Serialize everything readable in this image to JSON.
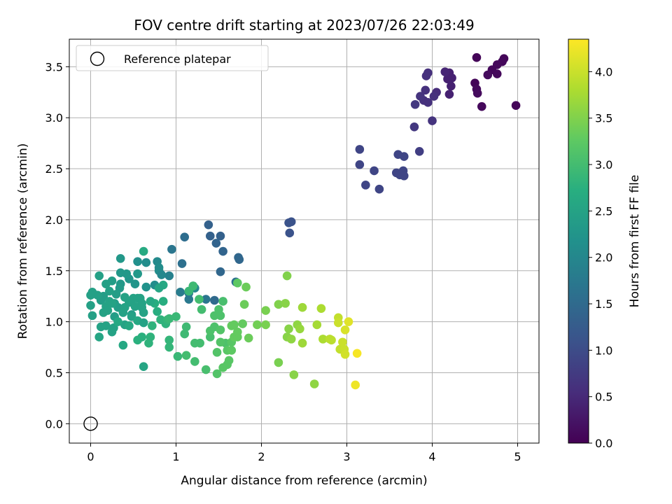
{
  "chart_data": {
    "type": "scatter",
    "title": "FOV centre drift starting at 2023/07/26 22:03:49",
    "xlabel": "Angular distance from reference (arcmin)",
    "ylabel": "Rotation from reference (arcmin)",
    "colorbar_label": "Hours from first FF file",
    "xlim": [
      -0.25,
      5.25
    ],
    "ylim": [
      -0.19,
      3.77
    ],
    "clim": [
      0,
      4.35
    ],
    "x_ticks": [
      "0",
      "1",
      "2",
      "3",
      "4",
      "5"
    ],
    "y_ticks": [
      "0.0",
      "0.5",
      "1.0",
      "1.5",
      "2.0",
      "2.5",
      "3.0",
      "3.5"
    ],
    "colorbar_ticks": [
      "0.0",
      "0.5",
      "1.0",
      "1.5",
      "2.0",
      "2.5",
      "3.0",
      "3.5",
      "4.0"
    ],
    "colormap": "viridis",
    "grid": true,
    "legend": {
      "position": "top-left",
      "entries": [
        "Reference platepar"
      ]
    },
    "reference_point": {
      "x": 0,
      "y": 0,
      "label": "Reference platepar"
    },
    "points": [
      [
        4.52,
        3.59,
        0.05
      ],
      [
        4.84,
        3.58,
        0.05
      ],
      [
        4.82,
        3.55,
        0.08
      ],
      [
        4.76,
        3.52,
        0.1
      ],
      [
        4.7,
        3.47,
        0.08
      ],
      [
        4.76,
        3.43,
        0.1
      ],
      [
        4.65,
        3.42,
        0.12
      ],
      [
        4.5,
        3.34,
        0.05
      ],
      [
        4.52,
        3.28,
        0.1
      ],
      [
        4.53,
        3.24,
        0.12
      ],
      [
        4.58,
        3.11,
        0.1
      ],
      [
        4.98,
        3.12,
        0.05
      ],
      [
        4.2,
        3.44,
        0.4
      ],
      [
        4.23,
        3.39,
        0.4
      ],
      [
        4.18,
        3.38,
        0.4
      ],
      [
        4.15,
        3.45,
        0.45
      ],
      [
        4.22,
        3.31,
        0.4
      ],
      [
        4.2,
        3.23,
        0.4
      ],
      [
        4.05,
        3.25,
        0.55
      ],
      [
        4.02,
        3.21,
        0.6
      ],
      [
        3.95,
        3.44,
        0.6
      ],
      [
        3.93,
        3.41,
        0.6
      ],
      [
        3.92,
        3.27,
        0.6
      ],
      [
        3.9,
        3.17,
        0.6
      ],
      [
        3.95,
        3.15,
        0.6
      ],
      [
        3.86,
        3.21,
        0.65
      ],
      [
        3.8,
        3.13,
        0.7
      ],
      [
        4.0,
        2.97,
        0.65
      ],
      [
        3.79,
        2.91,
        0.7
      ],
      [
        3.85,
        2.67,
        0.8
      ],
      [
        3.15,
        2.69,
        0.9
      ],
      [
        3.15,
        2.54,
        0.9
      ],
      [
        3.22,
        2.34,
        0.9
      ],
      [
        3.32,
        2.48,
        0.9
      ],
      [
        3.38,
        2.3,
        0.9
      ],
      [
        3.6,
        2.64,
        0.9
      ],
      [
        3.67,
        2.62,
        0.9
      ],
      [
        3.58,
        2.46,
        0.9
      ],
      [
        3.62,
        2.44,
        0.9
      ],
      [
        3.66,
        2.48,
        0.9
      ],
      [
        3.67,
        2.43,
        0.9
      ],
      [
        2.32,
        1.97,
        1.1
      ],
      [
        2.35,
        1.98,
        1.1
      ],
      [
        2.33,
        1.87,
        1.1
      ],
      [
        1.38,
        1.95,
        1.35
      ],
      [
        1.4,
        1.84,
        1.35
      ],
      [
        1.52,
        1.84,
        1.35
      ],
      [
        1.47,
        1.77,
        1.4
      ],
      [
        1.55,
        1.69,
        1.4
      ],
      [
        1.73,
        1.63,
        1.45
      ],
      [
        1.74,
        1.61,
        1.45
      ],
      [
        1.52,
        1.49,
        1.45
      ],
      [
        1.1,
        1.83,
        1.55
      ],
      [
        1.07,
        1.57,
        1.6
      ],
      [
        0.95,
        1.71,
        1.7
      ],
      [
        1.45,
        1.21,
        1.5
      ],
      [
        1.7,
        1.39,
        1.6
      ],
      [
        1.35,
        1.22,
        1.7
      ],
      [
        1.15,
        1.28,
        1.75
      ],
      [
        1.15,
        1.22,
        1.75
      ],
      [
        0.92,
        1.45,
        1.9
      ],
      [
        1.05,
        1.29,
        1.8
      ],
      [
        1.2,
        1.35,
        1.95
      ],
      [
        1.22,
        1.33,
        2.0
      ],
      [
        0.78,
        1.59,
        2.05
      ],
      [
        0.8,
        1.53,
        2.1
      ],
      [
        0.8,
        1.5,
        2.1
      ],
      [
        0.83,
        1.46,
        2.0
      ],
      [
        0.75,
        1.36,
        2.1
      ],
      [
        0.65,
        1.58,
        2.1
      ],
      [
        0.55,
        1.59,
        2.15
      ],
      [
        0.55,
        1.47,
        2.2
      ],
      [
        0.65,
        1.34,
        2.2
      ],
      [
        0.52,
        1.37,
        2.25
      ],
      [
        0.45,
        1.42,
        2.25
      ],
      [
        0.35,
        1.62,
        2.3
      ],
      [
        0.35,
        1.48,
        2.3
      ],
      [
        0.42,
        1.47,
        2.3
      ],
      [
        0.55,
        1.47,
        2.3
      ],
      [
        0.35,
        1.37,
        2.3
      ],
      [
        0.34,
        1.33,
        2.35
      ],
      [
        0.25,
        1.4,
        2.4
      ],
      [
        0.3,
        1.27,
        2.4
      ],
      [
        0.28,
        1.18,
        2.4
      ],
      [
        0.32,
        1.14,
        2.4
      ],
      [
        0.28,
        1.05,
        2.4
      ],
      [
        0.22,
        1.3,
        2.45
      ],
      [
        0.18,
        1.37,
        2.45
      ],
      [
        0.15,
        1.25,
        2.4
      ],
      [
        0.1,
        1.45,
        2.45
      ],
      [
        0.12,
        1.21,
        2.4
      ],
      [
        0.08,
        1.26,
        2.45
      ],
      [
        0.02,
        1.29,
        2.45
      ],
      [
        0.0,
        1.26,
        2.45
      ],
      [
        0.0,
        1.16,
        2.45
      ],
      [
        0.02,
        1.06,
        2.45
      ],
      [
        0.18,
        1.15,
        2.5
      ],
      [
        0.2,
        1.11,
        2.5
      ],
      [
        0.15,
        1.09,
        2.5
      ],
      [
        0.22,
        1.2,
        2.5
      ],
      [
        0.25,
        1.18,
        2.5
      ],
      [
        0.4,
        1.24,
        2.5
      ],
      [
        0.4,
        1.14,
        2.5
      ],
      [
        0.38,
        1.09,
        2.5
      ],
      [
        0.45,
        1.19,
        2.5
      ],
      [
        0.5,
        1.23,
        2.5
      ],
      [
        0.55,
        1.23,
        2.5
      ],
      [
        0.58,
        1.23,
        2.5
      ],
      [
        0.6,
        1.18,
        2.5
      ],
      [
        0.52,
        1.15,
        2.5
      ],
      [
        0.48,
        1.07,
        2.4
      ],
      [
        0.4,
        0.97,
        2.5
      ],
      [
        0.45,
        0.96,
        2.5
      ],
      [
        0.48,
        1.05,
        2.5
      ],
      [
        0.6,
        1.14,
        2.5
      ],
      [
        0.62,
        1.09,
        2.5
      ],
      [
        0.55,
        1.01,
        2.6
      ],
      [
        0.62,
        0.99,
        2.5
      ],
      [
        0.45,
        0.96,
        2.6
      ],
      [
        0.12,
        0.95,
        2.5
      ],
      [
        0.18,
        0.96,
        2.5
      ],
      [
        0.25,
        0.9,
        2.5
      ],
      [
        0.27,
        0.94,
        2.5
      ],
      [
        0.32,
        1.0,
        2.6
      ],
      [
        0.38,
        0.77,
        2.6
      ],
      [
        0.1,
        0.85,
        2.55
      ],
      [
        0.62,
        0.56,
        2.55
      ],
      [
        0.62,
        1.69,
        2.65
      ],
      [
        0.55,
        0.82,
        2.75
      ],
      [
        0.6,
        0.85,
        2.75
      ],
      [
        0.7,
        0.85,
        2.8
      ],
      [
        0.68,
        0.79,
        2.8
      ],
      [
        0.72,
        0.96,
        2.8
      ],
      [
        0.75,
        1.18,
        2.7
      ],
      [
        0.78,
        1.1,
        2.7
      ],
      [
        0.85,
        1.2,
        2.7
      ],
      [
        0.82,
        1.02,
        2.8
      ],
      [
        0.88,
        0.98,
        2.8
      ],
      [
        0.9,
        1.02,
        2.85
      ],
      [
        0.92,
        1.03,
        2.9
      ],
      [
        0.85,
        1.36,
        2.6
      ],
      [
        0.8,
        1.33,
        2.55
      ],
      [
        0.7,
        1.2,
        2.6
      ],
      [
        0.92,
        0.82,
        2.85
      ],
      [
        0.92,
        0.75,
        2.85
      ],
      [
        1.0,
        1.05,
        2.9
      ],
      [
        1.02,
        0.66,
        2.9
      ],
      [
        1.12,
        0.95,
        2.95
      ],
      [
        1.1,
        0.88,
        2.95
      ],
      [
        1.12,
        0.67,
        3.0
      ],
      [
        1.15,
        1.3,
        2.9
      ],
      [
        1.2,
        1.35,
        2.95
      ],
      [
        1.27,
        1.22,
        3.0
      ],
      [
        1.3,
        1.12,
        3.0
      ],
      [
        1.22,
        0.79,
        3.0
      ],
      [
        1.28,
        0.79,
        3.0
      ],
      [
        1.22,
        0.61,
        3.0
      ],
      [
        1.35,
        0.53,
        3.05
      ],
      [
        1.4,
        0.85,
        3.05
      ],
      [
        1.4,
        0.91,
        3.1
      ],
      [
        1.45,
        0.95,
        3.1
      ],
      [
        1.45,
        1.06,
        3.1
      ],
      [
        1.52,
        1.06,
        3.1
      ],
      [
        1.5,
        1.12,
        3.1
      ],
      [
        1.55,
        1.2,
        3.05
      ],
      [
        1.52,
        0.92,
        3.15
      ],
      [
        1.58,
        0.79,
        3.1
      ],
      [
        1.52,
        0.8,
        3.15
      ],
      [
        1.48,
        0.7,
        3.15
      ],
      [
        1.48,
        0.49,
        3.15
      ],
      [
        1.55,
        0.55,
        3.2
      ],
      [
        1.6,
        0.58,
        3.2
      ],
      [
        1.6,
        0.72,
        3.2
      ],
      [
        1.65,
        0.72,
        3.25
      ],
      [
        1.62,
        0.62,
        3.2
      ],
      [
        1.65,
        0.8,
        3.2
      ],
      [
        1.68,
        0.85,
        3.3
      ],
      [
        1.65,
        0.96,
        3.3
      ],
      [
        1.68,
        0.97,
        3.3
      ],
      [
        1.72,
        0.85,
        3.3
      ],
      [
        1.72,
        0.9,
        3.3
      ],
      [
        1.72,
        1.38,
        3.25
      ],
      [
        1.78,
        0.98,
        3.3
      ],
      [
        1.8,
        1.17,
        3.35
      ],
      [
        1.82,
        1.34,
        3.35
      ],
      [
        1.85,
        0.84,
        3.35
      ],
      [
        1.95,
        0.97,
        3.4
      ],
      [
        2.05,
        0.97,
        3.45
      ],
      [
        2.05,
        1.11,
        3.45
      ],
      [
        2.2,
        1.17,
        3.5
      ],
      [
        2.2,
        0.6,
        3.45
      ],
      [
        2.28,
        1.18,
        3.55
      ],
      [
        2.3,
        1.45,
        3.5
      ],
      [
        2.3,
        0.85,
        3.55
      ],
      [
        2.32,
        0.93,
        3.55
      ],
      [
        2.35,
        0.83,
        3.6
      ],
      [
        2.38,
        0.48,
        3.55
      ],
      [
        2.42,
        0.97,
        3.6
      ],
      [
        2.45,
        0.93,
        3.65
      ],
      [
        2.48,
        0.79,
        3.7
      ],
      [
        2.48,
        1.14,
        3.7
      ],
      [
        2.62,
        0.39,
        3.6
      ],
      [
        2.65,
        0.97,
        3.75
      ],
      [
        2.7,
        1.13,
        3.8
      ],
      [
        2.72,
        0.83,
        3.8
      ],
      [
        2.8,
        0.83,
        3.9
      ],
      [
        2.82,
        0.82,
        3.9
      ],
      [
        2.9,
        1.04,
        3.95
      ],
      [
        2.9,
        0.99,
        4.0
      ],
      [
        2.92,
        0.73,
        3.95
      ],
      [
        2.95,
        0.8,
        4.0
      ],
      [
        2.97,
        0.73,
        4.0
      ],
      [
        2.98,
        0.68,
        4.05
      ],
      [
        2.98,
        0.92,
        4.1
      ],
      [
        3.02,
        1.0,
        4.15
      ],
      [
        3.1,
        0.38,
        4.25
      ],
      [
        3.12,
        0.69,
        4.3
      ]
    ]
  }
}
